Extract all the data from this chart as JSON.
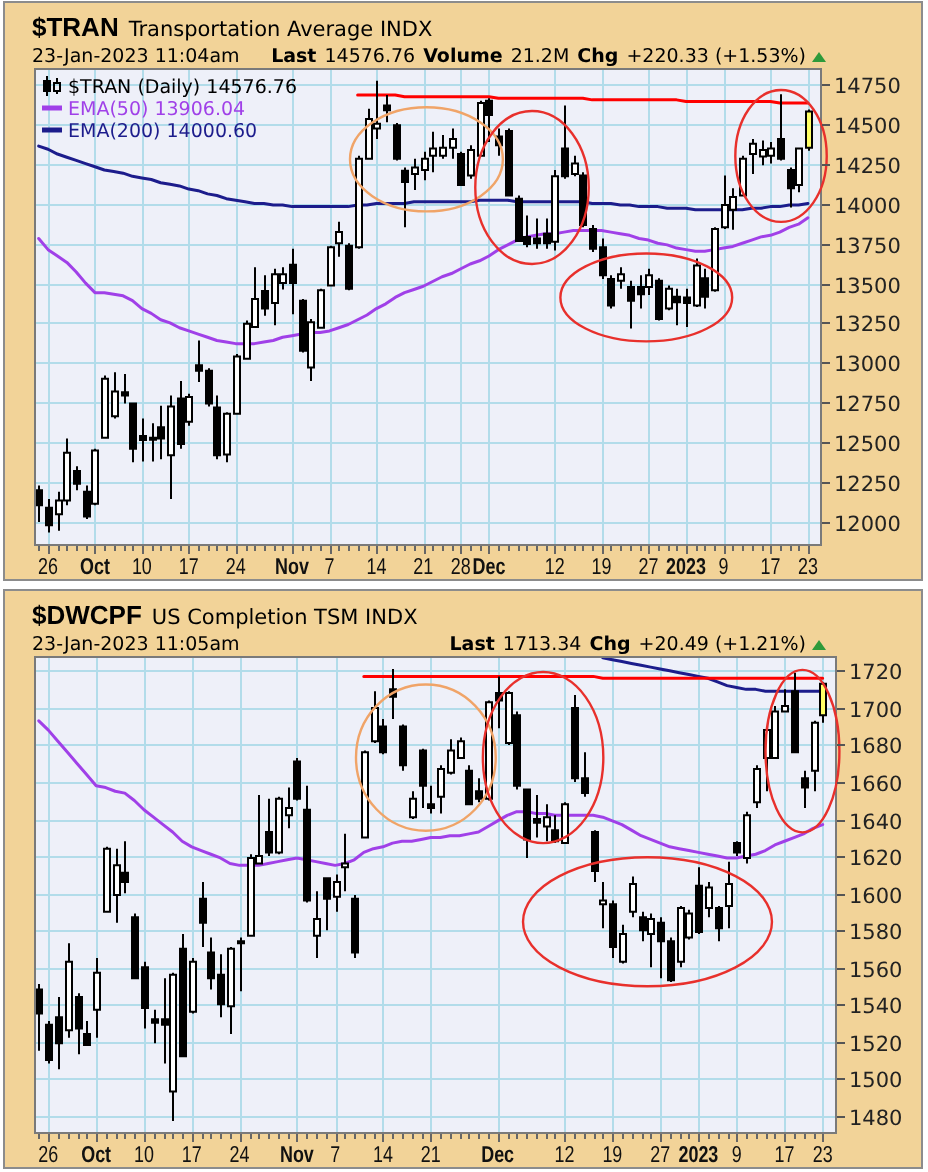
{
  "chart_data": [
    {
      "type": "candlestick",
      "title": "$TRAN",
      "subtitle": "Transportation Average INDX",
      "annotations": [
        "23-Jan-2023 11:04am",
        "Last",
        "14576.76",
        "Volume",
        "21.2M",
        "Chg",
        "+220.33 (+1.53%)"
      ],
      "categories": [
        null,
        "26",
        null,
        null,
        null,
        null,
        "Oct",
        null,
        null,
        null,
        null,
        "10",
        null,
        null,
        null,
        null,
        "17",
        null,
        null,
        null,
        null,
        "24",
        null,
        null,
        null,
        null,
        null,
        "Nov",
        null,
        null,
        null,
        "7",
        null,
        null,
        null,
        null,
        "14",
        null,
        null,
        null,
        null,
        "21",
        null,
        null,
        null,
        "28",
        null,
        null,
        "Dec",
        null,
        null,
        null,
        null,
        null,
        null,
        "12",
        null,
        null,
        null,
        null,
        "19",
        null,
        null,
        null,
        null,
        "27",
        null,
        null,
        null,
        "2023",
        null,
        null,
        null,
        "9",
        null,
        null,
        null,
        null,
        "17",
        null,
        null,
        null,
        "23"
      ],
      "series": [
        {
          "name": "$TRAN (Daily) 14576.76",
          "color": "#000000",
          "ohlc": [
            [
              12200,
              12230,
              12000,
              12105
            ],
            [
              12090,
              12145,
              11935,
              11980
            ],
            [
              12050,
              12190,
              11945,
              12135
            ],
            [
              12135,
              12525,
              12105,
              12435
            ],
            [
              12320,
              12350,
              12200,
              12240
            ],
            [
              12190,
              12230,
              12020,
              12035
            ],
            [
              12115,
              12460,
              12105,
              12450
            ],
            [
              12530,
              12920,
              12530,
              12900
            ],
            [
              12665,
              12940,
              12650,
              12820
            ],
            [
              12815,
              12930,
              12745,
              12795
            ],
            [
              12745,
              12750,
              12375,
              12460
            ],
            [
              12540,
              12650,
              12380,
              12515
            ],
            [
              12530,
              12620,
              12380,
              12520
            ],
            [
              12595,
              12730,
              12395,
              12525
            ],
            [
              12420,
              12795,
              12145,
              12725
            ],
            [
              12775,
              12885,
              12460,
              12490
            ],
            [
              12630,
              12805,
              12605,
              12785
            ],
            [
              12985,
              13140,
              12880,
              12950
            ],
            [
              12950,
              12965,
              12725,
              12745
            ],
            [
              12720,
              12795,
              12395,
              12420
            ],
            [
              12425,
              12690,
              12375,
              12680
            ],
            [
              12680,
              13055,
              12680,
              13040
            ],
            [
              13025,
              13265,
              13025,
              13245
            ],
            [
              13225,
              13600,
              13225,
              13400
            ],
            [
              13450,
              13550,
              13295,
              13340
            ],
            [
              13375,
              13590,
              13235,
              13555
            ],
            [
              13500,
              13600,
              13460,
              13555
            ],
            [
              13615,
              13715,
              13305,
              13500
            ],
            [
              13390,
              13400,
              13065,
              13075
            ],
            [
              12970,
              13275,
              12885,
              13255
            ],
            [
              13220,
              13465,
              13215,
              13455
            ],
            [
              13485,
              13735,
              13480,
              13725
            ],
            [
              13750,
              13885,
              13665,
              13820
            ],
            [
              13735,
              13750,
              13455,
              13465
            ],
            [
              13725,
              14300,
              13715,
              14280
            ],
            [
              14280,
              14595,
              14280,
              14530
            ],
            [
              14470,
              14770,
              14405,
              14500
            ],
            [
              14615,
              14680,
              14510,
              14585
            ],
            [
              14490,
              14505,
              14270,
              14280
            ],
            [
              14205,
              14225,
              13850,
              14135
            ],
            [
              14185,
              14280,
              14085,
              14225
            ],
            [
              14210,
              14325,
              14145,
              14280
            ],
            [
              14300,
              14450,
              14195,
              14345
            ],
            [
              14300,
              14430,
              14280,
              14350
            ],
            [
              14350,
              14470,
              14280,
              14405
            ],
            [
              14310,
              14325,
              14115,
              14115
            ],
            [
              14175,
              14365,
              14155,
              14335
            ],
            [
              14300,
              14645,
              14300,
              14630
            ],
            [
              14645,
              14660,
              14385,
              14555
            ],
            [
              14420,
              14470,
              14300,
              14365
            ],
            [
              14455,
              14470,
              14045,
              14050
            ],
            [
              14030,
              14050,
              13760,
              13765
            ],
            [
              13790,
              13925,
              13725,
              13745
            ],
            [
              13780,
              13905,
              13715,
              13750
            ],
            [
              13810,
              13905,
              13715,
              13750
            ],
            [
              13760,
              14210,
              13705,
              14170
            ],
            [
              14345,
              14615,
              14155,
              14170
            ],
            [
              14185,
              14300,
              14170,
              14250
            ],
            [
              14175,
              14195,
              13850,
              13865
            ],
            [
              13840,
              13865,
              13695,
              13715
            ],
            [
              13725,
              13780,
              13525,
              13550
            ],
            [
              13525,
              13550,
              13340,
              13360
            ],
            [
              13515,
              13600,
              13465,
              13555
            ],
            [
              13475,
              13515,
              13215,
              13390
            ],
            [
              13475,
              13550,
              13340,
              13430
            ],
            [
              13475,
              13590,
              13425,
              13550
            ],
            [
              13515,
              13530,
              13265,
              13275
            ],
            [
              13340,
              13485,
              13330,
              13465
            ],
            [
              13415,
              13465,
              13235,
              13380
            ],
            [
              13410,
              13465,
              13225,
              13375
            ],
            [
              13360,
              13655,
              13350,
              13610
            ],
            [
              13530,
              13590,
              13340,
              13415
            ],
            [
              13455,
              13850,
              13445,
              13840
            ],
            [
              13850,
              14175,
              13840,
              13990
            ],
            [
              13960,
              14095,
              13835,
              14040
            ],
            [
              14050,
              14300,
              14045,
              14280
            ],
            [
              14310,
              14405,
              14185,
              14375
            ],
            [
              14295,
              14395,
              14240,
              14335
            ],
            [
              14300,
              14385,
              14250,
              14345
            ],
            [
              14405,
              14685,
              14270,
              14280
            ],
            [
              14210,
              14225,
              13975,
              14095
            ],
            [
              14115,
              14350,
              14070,
              14345
            ],
            [
              14350,
              14590,
              14330,
              14577
            ]
          ],
          "colors": [
            "#000000",
            "#000000",
            "#ffffff",
            "#ffffff",
            "#000000",
            "#000000",
            "#ffffff",
            "#ffffff",
            "#ffffff",
            "#000000",
            "#000000",
            "#000000",
            "#000000",
            "#000000",
            "#ffffff",
            "#000000",
            "#ffffff",
            "#000000",
            "#000000",
            "#000000",
            "#ffffff",
            "#ffffff",
            "#ffffff",
            "#ffffff",
            "#000000",
            "#ffffff",
            "#ffffff",
            "#000000",
            "#000000",
            "#ffffff",
            "#ffffff",
            "#ffffff",
            "#ffffff",
            "#000000",
            "#ffffff",
            "#ffffff",
            "#ffffff",
            "#000000",
            "#000000",
            "#000000",
            "#ffffff",
            "#ffffff",
            "#ffffff",
            "#ffffff",
            "#ffffff",
            "#000000",
            "#ffffff",
            "#ffffff",
            "#000000",
            "#000000",
            "#000000",
            "#000000",
            "#000000",
            "#000000",
            "#000000",
            "#ffffff",
            "#000000",
            "#ffffff",
            "#000000",
            "#000000",
            "#000000",
            "#000000",
            "#ffffff",
            "#000000",
            "#000000",
            "#ffffff",
            "#000000",
            "#ffffff",
            "#000000",
            "#000000",
            "#ffffff",
            "#000000",
            "#ffffff",
            "#ffffff",
            "#ffffff",
            "#ffffff",
            "#ffffff",
            "#ffffff",
            "#ffffff",
            "#000000",
            "#000000",
            "#ffffff",
            "#ffff66"
          ]
        },
        {
          "name": "EMA(50) 13906.04",
          "type": "line",
          "color": "#a040e8",
          "values": [
            13780,
            13710,
            13670,
            13630,
            13570,
            13500,
            13440,
            13440,
            13430,
            13420,
            13390,
            13340,
            13310,
            13270,
            13250,
            13220,
            13200,
            13180,
            13160,
            13140,
            13130,
            13120,
            13120,
            13120,
            13130,
            13140,
            13160,
            13170,
            13180,
            13190,
            13190,
            13200,
            13220,
            13240,
            13270,
            13300,
            13340,
            13370,
            13410,
            13440,
            13460,
            13480,
            13510,
            13540,
            13560,
            13590,
            13620,
            13640,
            13670,
            13710,
            13740,
            13770,
            13790,
            13800,
            13810,
            13810,
            13820,
            13830,
            13830,
            13830,
            13830,
            13820,
            13810,
            13800,
            13780,
            13770,
            13750,
            13740,
            13720,
            13710,
            13700,
            13700,
            13710,
            13720,
            13730,
            13750,
            13770,
            13790,
            13800,
            13820,
            13850,
            13870,
            13910
          ]
        },
        {
          "name": "EMA(200) 14000.60",
          "type": "line",
          "color": "#1c1c8c",
          "values": [
            14360,
            14340,
            14310,
            14290,
            14270,
            14250,
            14230,
            14210,
            14200,
            14190,
            14170,
            14160,
            14150,
            14130,
            14120,
            14110,
            14090,
            14080,
            14060,
            14050,
            14030,
            14020,
            14010,
            14000,
            14000,
            13990,
            13990,
            13980,
            13980,
            13980,
            13980,
            13980,
            13980,
            13980,
            13990,
            13990,
            14000,
            14000,
            14000,
            14000,
            14010,
            14010,
            14010,
            14010,
            14010,
            14010,
            14010,
            14020,
            14020,
            14020,
            14020,
            14010,
            14010,
            14010,
            14010,
            14010,
            14010,
            14010,
            14010,
            14000,
            14000,
            14000,
            13990,
            13990,
            13980,
            13980,
            13980,
            13970,
            13970,
            13970,
            13960,
            13960,
            13960,
            13960,
            13960,
            13960,
            13970,
            13970,
            13980,
            13980,
            13990,
            13990,
            14000
          ]
        },
        {
          "type": "line",
          "color": "#ff0000",
          "values": [
            null,
            null,
            null,
            null,
            null,
            null,
            null,
            null,
            null,
            null,
            null,
            null,
            null,
            null,
            null,
            null,
            null,
            null,
            null,
            null,
            null,
            null,
            null,
            null,
            null,
            null,
            null,
            null,
            null,
            null,
            null,
            null,
            null,
            null,
            14680,
            14680,
            14680,
            14680,
            14680,
            14670,
            14670,
            14670,
            14670,
            14670,
            14670,
            14670,
            14670,
            14670,
            14670,
            14660,
            14660,
            14660,
            14660,
            14660,
            14660,
            14660,
            14660,
            14660,
            14660,
            14650,
            14650,
            14650,
            14650,
            14650,
            14650,
            14650,
            14650,
            14650,
            14650,
            14640,
            14640,
            14640,
            14640,
            14640,
            14640,
            14640,
            14640,
            14640,
            14640,
            14630,
            14630,
            14630,
            14630
          ]
        }
      ],
      "ylim": [
        11850,
        14850
      ],
      "yticks": [
        12000,
        12250,
        12500,
        12750,
        13000,
        13250,
        13500,
        13750,
        14000,
        14250,
        14500,
        14750
      ],
      "grid": true,
      "legend": "top left"
    },
    {
      "type": "candlestick",
      "title": "$DWCPF",
      "subtitle": "US Completion TSM INDX",
      "annotations": [
        "23-Jan-2023 11:05am",
        "Last",
        "1713.34",
        "Chg",
        "+20.49 (+1.21%)"
      ],
      "categories": [
        null,
        "26",
        null,
        null,
        null,
        null,
        "Oct",
        null,
        null,
        null,
        null,
        "10",
        null,
        null,
        null,
        null,
        "17",
        null,
        null,
        null,
        null,
        "24",
        null,
        null,
        null,
        null,
        null,
        "Nov",
        null,
        null,
        null,
        "7",
        null,
        null,
        null,
        null,
        "14",
        null,
        null,
        null,
        null,
        "21",
        null,
        null,
        null,
        null,
        null,
        null,
        "Dec",
        null,
        null,
        null,
        null,
        null,
        null,
        "12",
        null,
        null,
        null,
        null,
        "19",
        null,
        null,
        null,
        null,
        "27",
        null,
        null,
        null,
        "2023",
        null,
        null,
        null,
        "9",
        null,
        null,
        null,
        null,
        "17",
        null,
        null,
        null,
        "23"
      ],
      "series": [
        {
          "color": "#000000",
          "ohlc": [
            [
              1548,
              1551,
              1515,
              1535
            ],
            [
              1529,
              1531,
              1508,
              1510
            ],
            [
              1533,
              1544,
              1505,
              1519
            ],
            [
              1526,
              1573,
              1522,
              1563
            ],
            [
              1544,
              1546,
              1513,
              1527
            ],
            [
              1524,
              1531,
              1518,
              1518
            ],
            [
              1537,
              1565,
              1522,
              1557
            ],
            [
              1590,
              1625,
              1590,
              1624
            ],
            [
              1599,
              1624,
              1584,
              1615
            ],
            [
              1611,
              1628,
              1600,
              1606
            ],
            [
              1587,
              1589,
              1554,
              1554
            ],
            [
              1560,
              1563,
              1527,
              1538
            ],
            [
              1532,
              1537,
              1519,
              1530
            ],
            [
              1532,
              1554,
              1508,
              1529
            ],
            [
              1493,
              1557,
              1477,
              1556
            ],
            [
              1570,
              1578,
              1512,
              1512
            ],
            [
              1536,
              1565,
              1535,
              1563
            ],
            [
              1597,
              1606,
              1571,
              1584
            ],
            [
              1568,
              1576,
              1548,
              1554
            ],
            [
              1556,
              1567,
              1533,
              1540
            ],
            [
              1539,
              1571,
              1524,
              1570
            ],
            [
              1573,
              1576,
              1547,
              1574
            ],
            [
              1577,
              1621,
              1577,
              1619
            ],
            [
              1616,
              1653,
              1616,
              1620
            ],
            [
              1633,
              1651,
              1620,
              1622
            ],
            [
              1622,
              1652,
              1621,
              1651
            ],
            [
              1642,
              1657,
              1635,
              1646
            ],
            [
              1671,
              1673,
              1650,
              1651
            ],
            [
              1645,
              1658,
              1595,
              1596
            ],
            [
              1577,
              1601,
              1565,
              1586
            ],
            [
              1608,
              1608,
              1580,
              1597
            ],
            [
              1598,
              1610,
              1590,
              1606
            ],
            [
              1614,
              1632,
              1601,
              1616
            ],
            [
              1597,
              1599,
              1565,
              1568
            ],
            [
              1630,
              1677,
              1630,
              1676
            ],
            [
              1682,
              1709,
              1681,
              1700
            ],
            [
              1690,
              1694,
              1675,
              1676
            ],
            [
              1710,
              1721,
              1694,
              1706
            ],
            [
              1690,
              1691,
              1666,
              1669
            ],
            [
              1641,
              1655,
              1640,
              1651
            ],
            [
              1677,
              1678,
              1646,
              1658
            ],
            [
              1648,
              1658,
              1643,
              1646
            ],
            [
              1652,
              1669,
              1643,
              1667
            ],
            [
              1665,
              1683,
              1664,
              1677
            ],
            [
              1673,
              1684,
              1673,
              1682
            ],
            [
              1666,
              1669,
              1648,
              1648
            ],
            [
              1655,
              1662,
              1649,
              1651
            ],
            [
              1651,
              1704,
              1650,
              1703
            ],
            [
              1708,
              1717,
              1689,
              1704
            ],
            [
              1681,
              1709,
              1680,
              1708
            ],
            [
              1696,
              1698,
              1656,
              1658
            ],
            [
              1656,
              1656,
              1619,
              1629
            ],
            [
              1640,
              1653,
              1630,
              1638
            ],
            [
              1636,
              1648,
              1628,
              1641
            ],
            [
              1634,
              1642,
              1627,
              1628
            ],
            [
              1627,
              1649,
              1627,
              1648
            ],
            [
              1700,
              1707,
              1660,
              1662
            ],
            [
              1662,
              1676,
              1652,
              1654
            ],
            [
              1633,
              1634,
              1606,
              1612
            ],
            [
              1594,
              1606,
              1581,
              1596
            ],
            [
              1594,
              1596,
              1565,
              1571
            ],
            [
              1563,
              1583,
              1562,
              1578
            ],
            [
              1590,
              1609,
              1587,
              1605
            ],
            [
              1587,
              1590,
              1574,
              1580
            ],
            [
              1578,
              1589,
              1560,
              1586
            ],
            [
              1584,
              1587,
              1554,
              1574
            ],
            [
              1574,
              1576,
              1552,
              1553
            ],
            [
              1563,
              1593,
              1560,
              1592
            ],
            [
              1576,
              1591,
              1575,
              1589
            ],
            [
              1604,
              1614,
              1578,
              1579
            ],
            [
              1592,
              1606,
              1587,
              1603
            ],
            [
              1592,
              1593,
              1574,
              1581
            ],
            [
              1593,
              1617,
              1581,
              1605
            ],
            [
              1627,
              1628,
              1620,
              1622
            ],
            [
              1619,
              1644,
              1616,
              1642
            ],
            [
              1649,
              1669,
              1646,
              1667
            ],
            [
              1673,
              1689,
              1655,
              1688
            ],
            [
              1673,
              1701,
              1673,
              1698
            ],
            [
              1698,
              1710,
              1698,
              1701
            ],
            [
              1709,
              1719,
              1676,
              1676
            ],
            [
              1662,
              1666,
              1646,
              1657
            ],
            [
              1666,
              1693,
              1655,
              1692
            ],
            [
              1696,
              1714,
              1692,
              1713
            ]
          ],
          "colors": [
            "#000000",
            "#000000",
            "#000000",
            "#ffffff",
            "#000000",
            "#000000",
            "#ffffff",
            "#ffffff",
            "#ffffff",
            "#000000",
            "#000000",
            "#000000",
            "#000000",
            "#000000",
            "#ffffff",
            "#000000",
            "#ffffff",
            "#000000",
            "#000000",
            "#000000",
            "#ffffff",
            "#ffffff",
            "#ffffff",
            "#ffffff",
            "#000000",
            "#ffffff",
            "#ffffff",
            "#000000",
            "#000000",
            "#ffffff",
            "#000000",
            "#ffffff",
            "#ffffff",
            "#000000",
            "#ffffff",
            "#ffffff",
            "#000000",
            "#000000",
            "#000000",
            "#ffffff",
            "#000000",
            "#000000",
            "#ffffff",
            "#ffffff",
            "#ffffff",
            "#000000",
            "#000000",
            "#ffffff",
            "#000000",
            "#ffffff",
            "#000000",
            "#000000",
            "#000000",
            "#ffffff",
            "#000000",
            "#ffffff",
            "#000000",
            "#000000",
            "#000000",
            "#ffffff",
            "#000000",
            "#ffffff",
            "#ffffff",
            "#000000",
            "#ffffff",
            "#000000",
            "#000000",
            "#ffffff",
            "#ffffff",
            "#000000",
            "#ffffff",
            "#000000",
            "#ffffff",
            "#000000",
            "#ffffff",
            "#ffffff",
            "#ffffff",
            "#ffffff",
            "#ffffff",
            "#000000",
            "#000000",
            "#ffffff",
            "#ffff66"
          ]
        },
        {
          "type": "line",
          "color": "#a040e8",
          "values": [
            1693,
            1688,
            1682,
            1676,
            1670,
            1664,
            1658,
            1657,
            1655,
            1654,
            1650,
            1645,
            1641,
            1637,
            1633,
            1628,
            1625,
            1623,
            1621,
            1619,
            1616,
            1615,
            1615,
            1615,
            1616,
            1617,
            1618,
            1619,
            1618,
            1617,
            1616,
            1615,
            1616,
            1618,
            1622,
            1624,
            1625,
            1627,
            1628,
            1628,
            1629,
            1630,
            1630,
            1631,
            1631,
            1632,
            1633,
            1636,
            1639,
            1642,
            1644,
            1644,
            1643,
            1643,
            1642,
            1642,
            1642,
            1642,
            1642,
            1641,
            1639,
            1637,
            1634,
            1631,
            1629,
            1627,
            1625,
            1624,
            1623,
            1622,
            1621,
            1620,
            1619,
            1619,
            1620,
            1621,
            1623,
            1626,
            1628,
            1630,
            1632,
            1635,
            1637
          ]
        },
        {
          "type": "line",
          "color": "#1c1c8c",
          "values": [
            null,
            null,
            null,
            null,
            null,
            null,
            null,
            null,
            null,
            null,
            null,
            null,
            null,
            null,
            null,
            null,
            null,
            null,
            null,
            null,
            null,
            null,
            null,
            null,
            null,
            null,
            null,
            null,
            null,
            null,
            null,
            null,
            null,
            null,
            null,
            null,
            null,
            null,
            null,
            null,
            null,
            null,
            null,
            null,
            null,
            null,
            null,
            null,
            null,
            null,
            null,
            null,
            null,
            null,
            null,
            null,
            null,
            null,
            null,
            1727,
            1726,
            1725,
            1724,
            1723,
            1722,
            1721,
            1720,
            1719,
            1718,
            1717,
            1716,
            1714,
            1712,
            1711,
            1710,
            1710,
            1709,
            1709,
            1709,
            1709,
            1709,
            1709,
            1709
          ]
        },
        {
          "type": "line",
          "color": "#ff0000",
          "values": [
            null,
            null,
            null,
            null,
            null,
            null,
            null,
            null,
            null,
            null,
            null,
            null,
            null,
            null,
            null,
            null,
            null,
            null,
            null,
            null,
            null,
            null,
            null,
            null,
            null,
            null,
            null,
            null,
            null,
            null,
            null,
            null,
            null,
            null,
            1717,
            1717,
            1717,
            1717,
            1717,
            1717,
            1717,
            1717,
            1717,
            1717,
            1717,
            1717,
            1717,
            1717,
            1717,
            1717,
            1717,
            1717,
            1717,
            1717,
            1717,
            1717,
            1717,
            1717,
            1717,
            1716,
            1716,
            1716,
            1716,
            1716,
            1716,
            1716,
            1716,
            1716,
            1716,
            1716,
            1716,
            1716,
            1716,
            1716,
            1716,
            1716,
            1716,
            1716,
            1716,
            1716,
            1716,
            1716,
            1716
          ]
        }
      ],
      "ylim": [
        1470,
        1728
      ],
      "yticks": [
        1480,
        1500,
        1520,
        1540,
        1560,
        1580,
        1600,
        1620,
        1640,
        1660,
        1680,
        1700,
        1720
      ],
      "grid": true
    }
  ]
}
